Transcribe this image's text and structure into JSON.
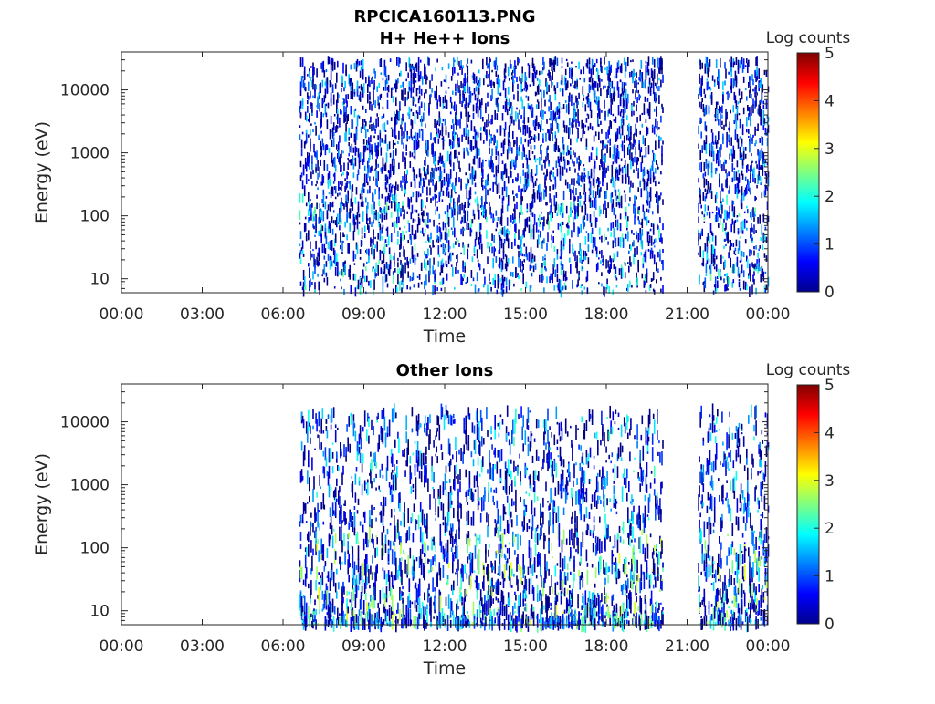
{
  "figure_title": "RPCICA160113.PNG",
  "colorbar_ticks": [
    "0",
    "1",
    "2",
    "3",
    "4",
    "5"
  ],
  "chart_data": [
    {
      "type": "heatmap",
      "title": "H+ He++ Ions",
      "xlabel": "Time",
      "ylabel": "Energy (eV)",
      "xtick_labels": [
        "00:00",
        "03:00",
        "06:00",
        "09:00",
        "12:00",
        "15:00",
        "18:00",
        "21:00",
        "00:00"
      ],
      "ytick_labels": [
        "10",
        "100",
        "1000",
        "10000"
      ],
      "x_range_hours": [
        0,
        24
      ],
      "y_scale": "log",
      "y_range": [
        6,
        40000
      ],
      "colorbar_label": "Log counts",
      "colorbar_range": [
        0,
        5
      ],
      "data_coverage_hours": [
        [
          6.6,
          20.1
        ],
        [
          21.4,
          24
        ]
      ],
      "note_energy_band": [
        6,
        30000
      ],
      "dominant_log_counts": [
        0,
        2.2
      ]
    },
    {
      "type": "heatmap",
      "title": "Other Ions",
      "xlabel": "Time",
      "ylabel": "Energy (eV)",
      "xtick_labels": [
        "00:00",
        "03:00",
        "06:00",
        "09:00",
        "12:00",
        "15:00",
        "18:00",
        "21:00",
        "00:00"
      ],
      "ytick_labels": [
        "10",
        "100",
        "1000",
        "10000"
      ],
      "x_range_hours": [
        0,
        24
      ],
      "y_scale": "log",
      "y_range": [
        6,
        40000
      ],
      "colorbar_label": "Log counts",
      "colorbar_range": [
        0,
        5
      ],
      "data_coverage_hours": [
        [
          6.6,
          20.1
        ],
        [
          21.4,
          24
        ]
      ],
      "note_energy_band": [
        6,
        15000
      ],
      "dominant_log_counts": [
        0,
        2.8
      ]
    }
  ]
}
